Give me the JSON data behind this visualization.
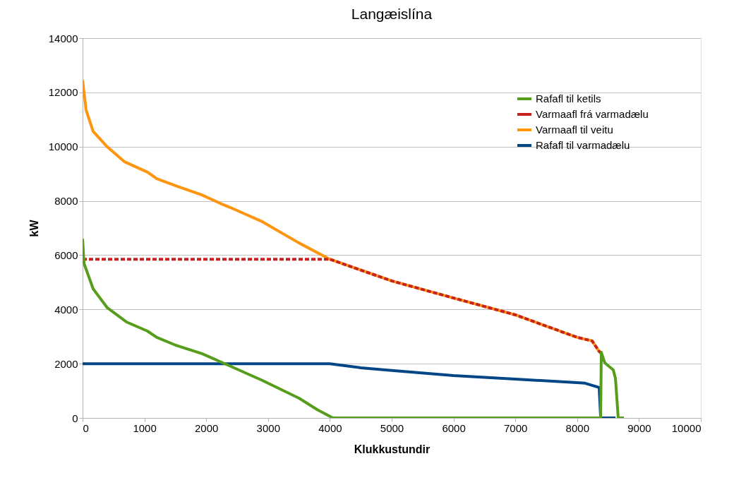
{
  "chart_data": {
    "type": "line",
    "title": "Langæislína",
    "xlabel": "Klukkustundir",
    "ylabel": "kW",
    "xlim": [
      0,
      10000
    ],
    "xticks": [
      0,
      1000,
      2000,
      3000,
      4000,
      5000,
      6000,
      7000,
      8000,
      9000,
      10000
    ],
    "ylim": [
      0,
      14000
    ],
    "yticks": [
      0,
      2000,
      4000,
      6000,
      8000,
      10000,
      12000,
      14000
    ],
    "grid": "y",
    "legend": "top right",
    "marker": "none",
    "series": [
      {
        "name": "Rafafl til ketils",
        "color": "#579d1c",
        "line_style": "solid",
        "x": [
          0,
          23,
          171,
          400,
          708,
          1050,
          1200,
          1507,
          1930,
          2270,
          2911,
          3500,
          3800,
          4050,
          8380,
          8390,
          8447,
          8584,
          8619,
          8664,
          8756
        ],
        "values": [
          6600,
          5700,
          4760,
          4060,
          3540,
          3200,
          2970,
          2680,
          2370,
          2030,
          1380,
          730,
          300,
          0,
          0,
          2420,
          2030,
          1770,
          1460,
          0,
          0
        ]
      },
      {
        "name": "Varmaafl frá varmadælu",
        "color": "#c9211e",
        "line_style": "dashed",
        "x": [
          0,
          4000,
          5000,
          6000,
          7000,
          8000,
          8242,
          8356,
          8380
        ],
        "values": [
          5850,
          5850,
          5050,
          4420,
          3800,
          2970,
          2840,
          2450,
          2400
        ]
      },
      {
        "name": "Varmaafl til veitu",
        "color": "#ff950e",
        "line_style": "solid",
        "x": [
          0,
          57,
          171,
          400,
          673,
          1050,
          1200,
          1507,
          1930,
          2226,
          2386,
          2911,
          3500,
          4000,
          5000,
          6000,
          7000,
          8000,
          8242,
          8356,
          8380
        ],
        "values": [
          12450,
          11350,
          10560,
          9990,
          9450,
          9060,
          8820,
          8560,
          8220,
          7910,
          7760,
          7230,
          6450,
          5850,
          5050,
          4420,
          3800,
          2970,
          2840,
          2450,
          2400
        ]
      },
      {
        "name": "Rafafl til varmadælu",
        "color": "#004586",
        "line_style": "solid",
        "x": [
          0,
          4000,
          4500,
          5000,
          6000,
          7000,
          8000,
          8128,
          8356,
          8380,
          8620
        ],
        "values": [
          2000,
          2000,
          1850,
          1750,
          1560,
          1430,
          1300,
          1280,
          1120,
          0,
          0
        ]
      }
    ]
  }
}
